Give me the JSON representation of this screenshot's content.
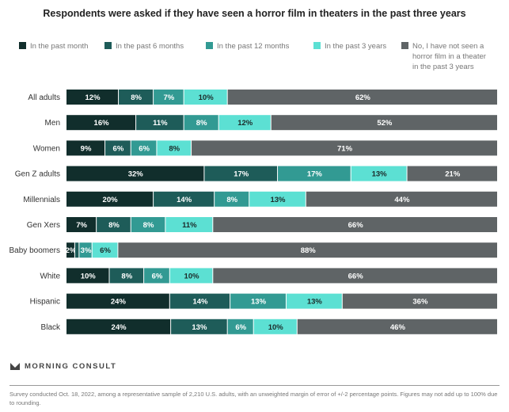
{
  "chart_data": {
    "type": "bar",
    "orientation": "horizontal",
    "stacked": true,
    "title": "Respondents were asked if they have seen a horror film in theaters in the past three years",
    "categories": [
      "All adults",
      "Men",
      "Women",
      "Gen Z adults",
      "Millennials",
      "Gen Xers",
      "Baby boomers",
      "White",
      "Hispanic",
      "Black"
    ],
    "series": [
      {
        "name": "In the past month",
        "color": "#112e2c",
        "values": [
          12,
          16,
          9,
          32,
          20,
          7,
          2,
          10,
          24,
          24
        ],
        "labels": [
          "12%",
          "16%",
          "9%",
          "32%",
          "20%",
          "7%",
          "2%",
          "10%",
          "24%",
          "24%"
        ]
      },
      {
        "name": "In the past 6 months",
        "color": "#1e5c59",
        "values": [
          8,
          11,
          6,
          17,
          14,
          8,
          1,
          8,
          14,
          13
        ],
        "labels": [
          "8%",
          "11%",
          "6%",
          "17%",
          "14%",
          "8%",
          "",
          "8%",
          "14%",
          "13%"
        ]
      },
      {
        "name": "In the past 12 months",
        "color": "#329a93",
        "values": [
          7,
          8,
          6,
          17,
          8,
          8,
          3,
          6,
          13,
          6
        ],
        "labels": [
          "7%",
          "8%",
          "6%",
          "17%",
          "8%",
          "8%",
          "3%",
          "6%",
          "13%",
          "6%"
        ]
      },
      {
        "name": "In the past 3 years",
        "color": "#5ce0d3",
        "values": [
          10,
          12,
          8,
          13,
          13,
          11,
          6,
          10,
          13,
          10
        ],
        "labels": [
          "10%",
          "12%",
          "8%",
          "13%",
          "13%",
          "11%",
          "6%",
          "10%",
          "13%",
          "10%"
        ]
      },
      {
        "name": "No, I have not seen a horror film in a theater in the past 3 years",
        "color": "#5f6466",
        "values": [
          62,
          52,
          71,
          21,
          44,
          66,
          88,
          66,
          36,
          46
        ],
        "labels": [
          "62%",
          "52%",
          "71%",
          "21%",
          "44%",
          "66%",
          "88%",
          "66%",
          "36%",
          "46%"
        ]
      }
    ],
    "xlim": [
      0,
      100
    ],
    "legend_position": "top",
    "grid": false
  },
  "legend_lines": [
    [
      "In the past month"
    ],
    [
      "In the past 6 months"
    ],
    [
      "In the past 12 months"
    ],
    [
      "In the past 3 years"
    ],
    [
      "No, I have not seen a",
      "horror film in a theater",
      "in the past 3 years"
    ]
  ],
  "branding": {
    "logo_text": "MORNING CONSULT"
  },
  "footnote": "Survey conducted Oct. 18, 2022, among a representative sample of 2,210 U.S. adults, with an unweighted margin of error of +/-2 percentage points. Figures may not add up to 100% due to rounding."
}
